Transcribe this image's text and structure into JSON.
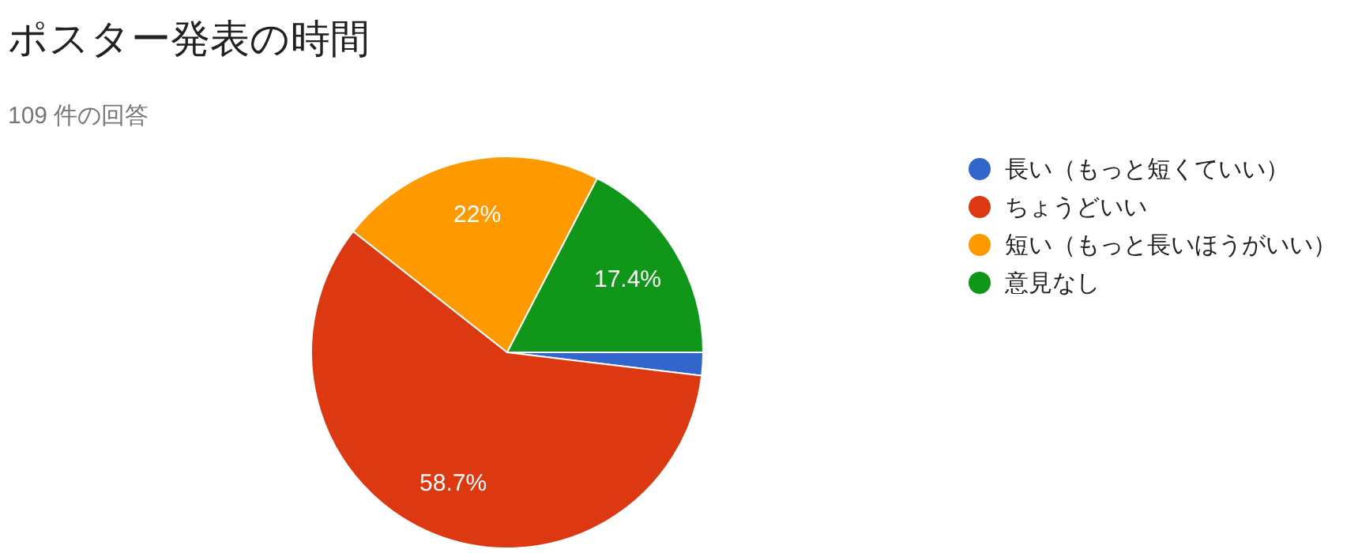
{
  "chart_data": {
    "type": "pie",
    "title": "ポスター発表の時間",
    "subtitle": "109 件の回答",
    "categories": [
      "長い（もっと短くていい）",
      "ちょうどいい",
      "短い（もっと長いほうがいい）",
      "意見なし"
    ],
    "values": [
      1.9,
      58.7,
      22,
      17.4
    ],
    "colors": [
      "#3366cc",
      "#dc3912",
      "#ff9900",
      "#109618"
    ],
    "value_labels": [
      null,
      "58.7%",
      "22%",
      "17.4%"
    ],
    "legend": "right"
  }
}
